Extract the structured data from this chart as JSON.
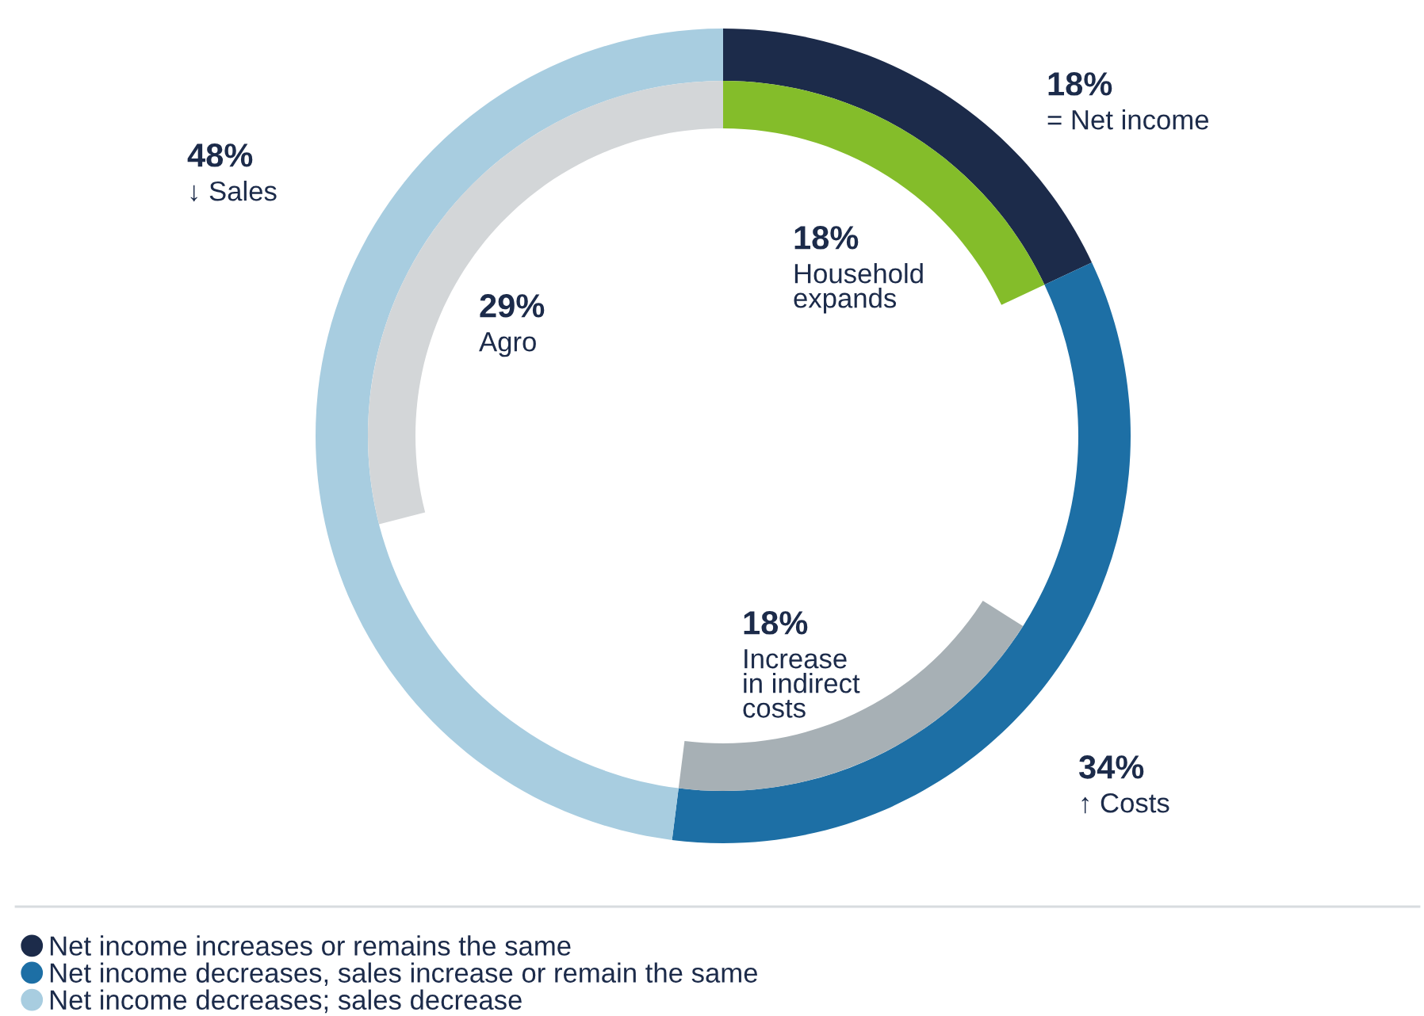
{
  "chart_data": {
    "type": "donut",
    "legend": "bottom",
    "categories": [
      "Net income increases or remains the same",
      "Net income decreases, sales increase or remain the same",
      "Net income decreases; sales decrease"
    ],
    "series": [
      {
        "values": [
          18,
          34,
          48
        ],
        "colors": [
          "#1c2b4a",
          "#1d6fa5",
          "#a8cde0"
        ],
        "value_labels": [
          "18%\n= Net income",
          "34%\n↑ Costs",
          "48%\n↓ Sales"
        ]
      },
      {
        "values": [
          18,
          18,
          29
        ],
        "colors": [
          "#84bd2a",
          "#a7b0b5",
          "#d3d6d8"
        ],
        "value_labels": [
          "18%\nHousehold\nexpands",
          "18%\nIncrease\nin indirect\ncosts",
          "29%\nAgro"
        ]
      }
    ]
  }
}
